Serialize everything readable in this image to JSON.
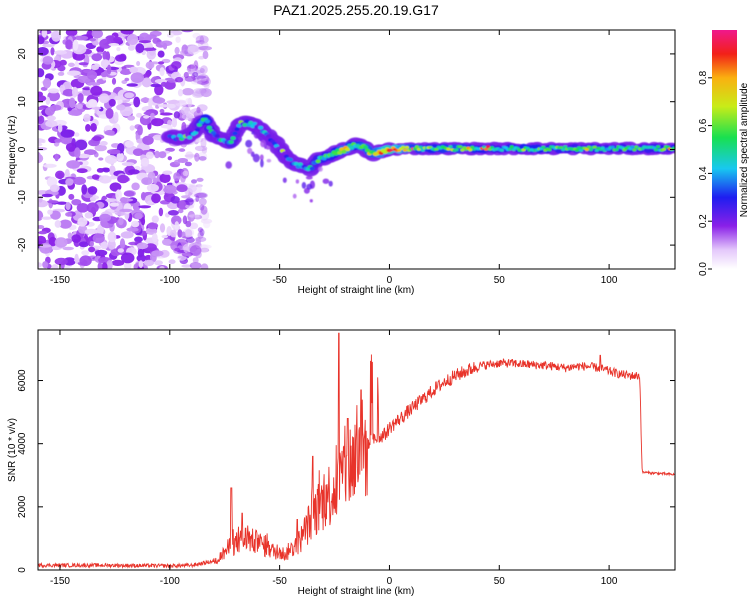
{
  "figure_title": "PAZ1.2025.255.20.19.G17",
  "chart_data": [
    {
      "type": "heatmap",
      "panel": "spectrogram",
      "xlabel": "Height of straight line (km)",
      "ylabel": "Frequency (Hz)",
      "xlim": [
        -160,
        130
      ],
      "ylim": [
        -25,
        25
      ],
      "x_ticks": [
        -150,
        -100,
        -50,
        0,
        50,
        100
      ],
      "y_ticks": [
        -20,
        -10,
        0,
        10,
        20
      ],
      "colorbar": {
        "label": "Normalized spectral amplitude",
        "range": [
          0,
          1
        ],
        "ticks": [
          "0.0",
          "0.2",
          "0.4",
          "0.6",
          "0.8"
        ]
      },
      "noise_region": {
        "x_range": [
          -160,
          -83
        ],
        "y_range": [
          -25,
          25
        ]
      },
      "ridge": {
        "x": [
          -100,
          -92,
          -88,
          -84,
          -80,
          -76,
          -72,
          -68,
          -64,
          -60,
          -56,
          -52,
          -48,
          -44,
          -40,
          -36,
          -32,
          -28,
          -24,
          -20,
          -16,
          -12,
          -8,
          -4,
          0,
          10,
          20,
          30,
          40,
          50,
          60,
          70,
          80,
          90,
          100,
          110,
          120,
          130
        ],
        "freq": [
          2.5,
          2.5,
          4,
          6.5,
          3,
          2,
          1.5,
          5.5,
          5.5,
          5,
          3,
          1.5,
          -1,
          -3,
          -3.5,
          -4,
          -2,
          -1.5,
          -0.5,
          0,
          1,
          0.5,
          -1,
          -0.5,
          0,
          0.2,
          0.2,
          0.2,
          0.2,
          0.2,
          0.2,
          0.2,
          0.2,
          0.2,
          0.2,
          0.2,
          0.2,
          0.2
        ],
        "amplitude": [
          0.35,
          0.3,
          0.35,
          0.55,
          0.4,
          0.3,
          0.45,
          0.35,
          0.4,
          0.3,
          0.35,
          0.3,
          0.3,
          0.35,
          0.35,
          0.4,
          0.5,
          0.5,
          0.55,
          0.7,
          0.5,
          0.65,
          0.6,
          0.7,
          0.85,
          0.6,
          0.55,
          0.6,
          0.55,
          0.5,
          0.55,
          0.55,
          0.5,
          0.5,
          0.5,
          0.5,
          0.5,
          0.55
        ]
      }
    },
    {
      "type": "line",
      "panel": "snr",
      "xlabel": "Height of straight line (km)",
      "ylabel": "SNR (10 * v/v)",
      "xlim": [
        -160,
        130
      ],
      "ylim": [
        0,
        7600
      ],
      "x_ticks": [
        -150,
        -100,
        -50,
        0,
        50,
        100
      ],
      "y_ticks": [
        0,
        2000,
        4000,
        6000
      ],
      "series": [
        {
          "name": "SNR",
          "color": "#e8332a",
          "x": [
            -160,
            -130,
            -100,
            -90,
            -80,
            -77,
            -74,
            -71,
            -68,
            -65,
            -62,
            -59,
            -56,
            -53,
            -50,
            -47,
            -44,
            -41,
            -38,
            -35,
            -32,
            -29,
            -26,
            -23,
            -20,
            -17,
            -14,
            -11,
            -8,
            -5,
            -2,
            0,
            5,
            10,
            15,
            20,
            25,
            30,
            35,
            40,
            45,
            50,
            55,
            60,
            65,
            70,
            75,
            80,
            85,
            90,
            95,
            100,
            105,
            110,
            112,
            114,
            115,
            118,
            122,
            126,
            130
          ],
          "y": [
            150,
            150,
            130,
            150,
            280,
            400,
            650,
            800,
            900,
            1000,
            900,
            850,
            700,
            600,
            550,
            500,
            700,
            900,
            1300,
            1700,
            2000,
            2300,
            2500,
            2800,
            3200,
            3400,
            3700,
            3900,
            4100,
            4200,
            4300,
            4500,
            4800,
            5100,
            5400,
            5700,
            5950,
            6150,
            6300,
            6450,
            6500,
            6550,
            6550,
            6520,
            6500,
            6480,
            6450,
            6400,
            6450,
            6450,
            6400,
            6300,
            6200,
            6150,
            6150,
            6150,
            3100,
            3080,
            3060,
            3040,
            3020
          ]
        }
      ],
      "spikes": [
        {
          "x": -72,
          "y": 2600
        },
        {
          "x": -67,
          "y": 1800
        },
        {
          "x": -42,
          "y": 1600
        },
        {
          "x": -35,
          "y": 3600
        },
        {
          "x": -23,
          "y": 7500
        },
        {
          "x": -19,
          "y": 4800
        },
        {
          "x": -13,
          "y": 5700
        },
        {
          "x": 96,
          "y": 6800
        }
      ]
    }
  ]
}
